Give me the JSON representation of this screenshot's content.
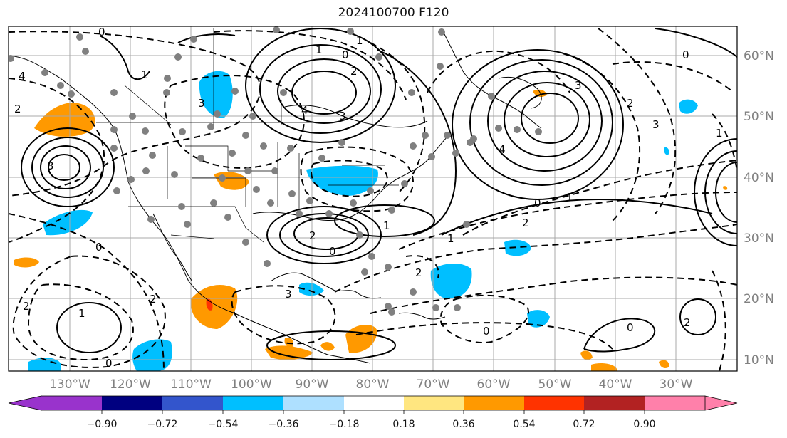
{
  "title": "2024100700 F120",
  "lat_labels": [
    "60°N",
    "50°N",
    "40°N",
    "30°N",
    "20°N",
    "10°N"
  ],
  "lon_labels": [
    "130°W",
    "120°W",
    "110°W",
    "100°W",
    "90°W",
    "80°W",
    "70°W",
    "60°W",
    "50°W",
    "40°W",
    "30°W"
  ],
  "colorbar": {
    "ticks": [
      "−0.90",
      "−0.72",
      "−0.54",
      "−0.36",
      "−0.18",
      "0.18",
      "0.36",
      "0.54",
      "0.72",
      "0.90"
    ],
    "colors": [
      "#9933cc",
      "#000080",
      "#3355cc",
      "#00bfff",
      "#aee0ff",
      "#ffffff",
      "#ffe680",
      "#ff9900",
      "#ff3300",
      "#b22222",
      "#ff80aa"
    ],
    "extend": "both"
  },
  "contour_labels": [
    "0",
    "1",
    "2",
    "3",
    "4",
    "0",
    "1",
    "2",
    "3",
    "4",
    "0",
    "1",
    "2",
    "3",
    "0",
    "1",
    "2",
    "0",
    "1",
    "2",
    "3",
    "0",
    "1",
    "2",
    "3",
    "4",
    "0",
    "1",
    "2",
    "3",
    "2",
    "1",
    "0",
    "0",
    "2"
  ],
  "colors": {
    "positive_fill": "#ff9900",
    "strong_positive_fill": "#ff3300",
    "negative_fill": "#00bfff",
    "contour": "#000000",
    "grid": "#a0a0a0",
    "coast": "#000000"
  }
}
